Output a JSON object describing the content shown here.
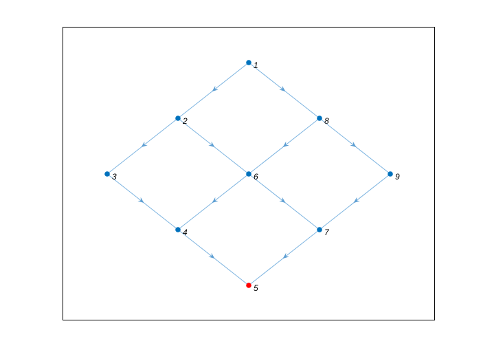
{
  "graph": {
    "type": "directed-graph",
    "colors": {
      "edge": "#7db4e0",
      "arrow": "#5e9fd3",
      "node": "#0072bd",
      "highlighted_node": "#ff0000",
      "axes_border": "#000000"
    },
    "nodes": [
      {
        "id": "1",
        "label": "1",
        "highlighted": false
      },
      {
        "id": "2",
        "label": "2",
        "highlighted": false
      },
      {
        "id": "3",
        "label": "3",
        "highlighted": false
      },
      {
        "id": "4",
        "label": "4",
        "highlighted": false
      },
      {
        "id": "5",
        "label": "5",
        "highlighted": true
      },
      {
        "id": "6",
        "label": "6",
        "highlighted": false
      },
      {
        "id": "7",
        "label": "7",
        "highlighted": false
      },
      {
        "id": "8",
        "label": "8",
        "highlighted": false
      },
      {
        "id": "9",
        "label": "9",
        "highlighted": false
      }
    ],
    "edges": [
      {
        "from": "1",
        "to": "2"
      },
      {
        "from": "1",
        "to": "8"
      },
      {
        "from": "2",
        "to": "3"
      },
      {
        "from": "2",
        "to": "6"
      },
      {
        "from": "8",
        "to": "6"
      },
      {
        "from": "8",
        "to": "9"
      },
      {
        "from": "3",
        "to": "4"
      },
      {
        "from": "6",
        "to": "4"
      },
      {
        "from": "6",
        "to": "7"
      },
      {
        "from": "9",
        "to": "7"
      },
      {
        "from": "4",
        "to": "5"
      },
      {
        "from": "7",
        "to": "5"
      }
    ]
  }
}
